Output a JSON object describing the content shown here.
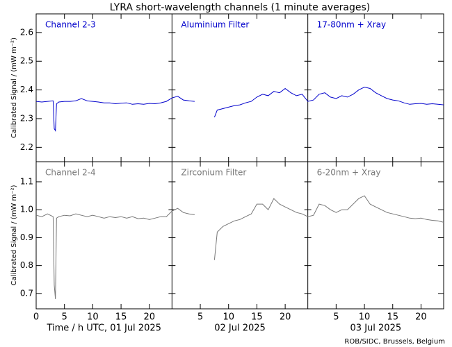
{
  "title": "LYRA short-wavelength channels (1 minute averages)",
  "credit": "ROB/SIDC, Brussels, Belgium",
  "day_labels": [
    "Time / h UTC, 01 Jul 2025",
    "02 Jul 2025",
    "03 Jul 2025"
  ],
  "chart_data": [
    {
      "type": "line",
      "ylabel": "Calibrated Signal / (mW m⁻²)",
      "color": "#0000cc",
      "panel_labels": [
        "Channel 2-3",
        "Aluminium Filter",
        "17-80nm + Xray"
      ],
      "xlim": [
        0,
        72
      ],
      "ylim": [
        2.15,
        2.665
      ],
      "yticks": [
        2.2,
        2.3,
        2.4,
        2.5,
        2.6
      ],
      "xticks": [
        0,
        5,
        10,
        15,
        20,
        {
          "value": 29,
          "label": "5"
        },
        {
          "value": 34,
          "label": "10"
        },
        {
          "value": 39,
          "label": "15"
        },
        {
          "value": 44,
          "label": "20"
        },
        {
          "value": 53,
          "label": "5"
        },
        {
          "value": 58,
          "label": "10"
        },
        {
          "value": 63,
          "label": "15"
        },
        {
          "value": 68,
          "label": "20"
        }
      ],
      "x": [
        0,
        1,
        2,
        3,
        3.2,
        3.4,
        3.6,
        4,
        5,
        6,
        7,
        8,
        9,
        10,
        11,
        12,
        13,
        14,
        15,
        16,
        17,
        18,
        19,
        20,
        21,
        22,
        23,
        24,
        25,
        26,
        27,
        28,
        29,
        31.5,
        32,
        33,
        34,
        35,
        36,
        37,
        38,
        39,
        40,
        41,
        42,
        43,
        44,
        45,
        46,
        47,
        48,
        49,
        50,
        51,
        52,
        53,
        54,
        55,
        56,
        57,
        58,
        59,
        60,
        61,
        62,
        63,
        64,
        65,
        66,
        67,
        68,
        69,
        70,
        71,
        72
      ],
      "values": [
        2.36,
        2.358,
        2.36,
        2.362,
        2.265,
        2.258,
        2.352,
        2.358,
        2.36,
        2.36,
        2.362,
        2.37,
        2.362,
        2.36,
        2.358,
        2.355,
        2.355,
        2.352,
        2.354,
        2.355,
        2.35,
        2.352,
        2.35,
        2.353,
        2.352,
        2.355,
        2.36,
        2.372,
        2.378,
        2.365,
        2.362,
        2.36,
        null,
        2.305,
        2.33,
        2.335,
        2.34,
        2.345,
        2.348,
        2.355,
        2.36,
        2.375,
        2.385,
        2.38,
        2.395,
        2.39,
        2.405,
        2.39,
        2.38,
        2.385,
        2.36,
        2.365,
        2.385,
        2.39,
        2.375,
        2.37,
        2.38,
        2.375,
        2.385,
        2.4,
        2.41,
        2.405,
        2.39,
        2.38,
        2.37,
        2.365,
        2.362,
        2.355,
        2.35,
        2.352,
        2.353,
        2.35,
        2.352,
        2.35,
        2.348
      ]
    },
    {
      "type": "line",
      "ylabel": "Calibrated Signal / (mW m⁻²)",
      "color": "#777777",
      "panel_labels": [
        "Channel 2-4",
        "Zirconium Filter",
        "6-20nm + Xray"
      ],
      "xlim": [
        0,
        72
      ],
      "ylim": [
        0.645,
        1.172
      ],
      "yticks": [
        0.7,
        0.8,
        0.9,
        {
          "value": 1,
          "label": "1.0"
        },
        1.1
      ],
      "xticks": [
        0,
        5,
        10,
        15,
        20,
        {
          "value": 29,
          "label": "5"
        },
        {
          "value": 34,
          "label": "10"
        },
        {
          "value": 39,
          "label": "15"
        },
        {
          "value": 44,
          "label": "20"
        },
        {
          "value": 53,
          "label": "5"
        },
        {
          "value": 58,
          "label": "10"
        },
        {
          "value": 63,
          "label": "15"
        },
        {
          "value": 68,
          "label": "20"
        }
      ],
      "x": [
        0,
        1,
        2,
        3,
        3.2,
        3.4,
        3.6,
        4,
        5,
        6,
        7,
        8,
        9,
        10,
        11,
        12,
        13,
        14,
        15,
        16,
        17,
        18,
        19,
        20,
        21,
        22,
        23,
        24,
        25,
        26,
        27,
        28,
        29,
        31.5,
        32,
        33,
        34,
        35,
        36,
        37,
        38,
        39,
        40,
        41,
        42,
        43,
        44,
        45,
        46,
        47,
        48,
        49,
        50,
        51,
        52,
        53,
        54,
        55,
        56,
        57,
        58,
        59,
        60,
        61,
        62,
        63,
        64,
        65,
        66,
        67,
        68,
        69,
        70,
        71,
        72
      ],
      "values": [
        0.98,
        0.975,
        0.985,
        0.975,
        0.73,
        0.68,
        0.97,
        0.975,
        0.98,
        0.978,
        0.985,
        0.98,
        0.975,
        0.98,
        0.975,
        0.97,
        0.975,
        0.972,
        0.975,
        0.97,
        0.975,
        0.968,
        0.97,
        0.965,
        0.97,
        0.975,
        0.975,
        0.995,
        1.005,
        0.99,
        0.985,
        0.982,
        null,
        0.82,
        0.92,
        0.94,
        0.95,
        0.96,
        0.965,
        0.975,
        0.985,
        1.02,
        1.02,
        1.0,
        1.04,
        1.02,
        1.01,
        1.0,
        0.99,
        0.985,
        0.975,
        0.98,
        1.02,
        1.015,
        1.0,
        0.99,
        1.0,
        1.0,
        1.02,
        1.04,
        1.05,
        1.02,
        1.01,
        1.0,
        0.99,
        0.985,
        0.98,
        0.975,
        0.97,
        0.968,
        0.97,
        0.965,
        0.962,
        0.96,
        0.955
      ]
    }
  ]
}
